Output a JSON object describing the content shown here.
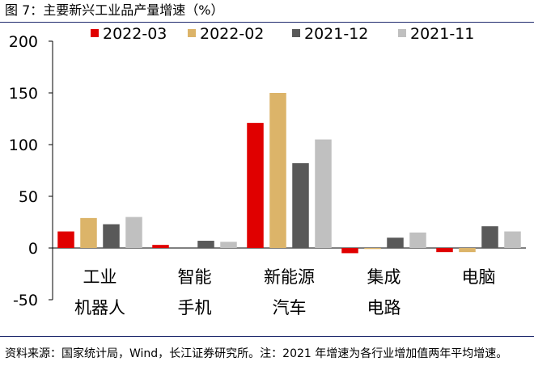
{
  "title": "图 7：主要新兴工业品产量增速（%）",
  "source": "资料来源：国家统计局，Wind，长江证券研究所。注：2021 年增速为各行业增加值两年平均增速。",
  "chart_data": {
    "type": "bar",
    "title": "主要新兴工业品产量增速（%）",
    "xlabel": "",
    "ylabel": "%",
    "ylim": [
      -50,
      200
    ],
    "yticks": [
      200,
      150,
      100,
      50,
      0,
      -50
    ],
    "grid": false,
    "legend": "top",
    "categories": [
      [
        "工业",
        "机器人"
      ],
      [
        "智能",
        "手机"
      ],
      [
        "新能源",
        "汽车"
      ],
      [
        "集成",
        "电路"
      ],
      [
        "电脑"
      ]
    ],
    "series": [
      {
        "name": "2022-03",
        "color": "#e00000",
        "values": [
          16,
          3,
          121,
          -5,
          -4
        ]
      },
      {
        "name": "2022-02",
        "color": "#dcb469",
        "values": [
          29,
          0,
          150,
          -1,
          -4
        ]
      },
      {
        "name": "2021-12",
        "color": "#595959",
        "values": [
          23,
          7,
          82,
          10,
          21
        ]
      },
      {
        "name": "2021-11",
        "color": "#c0c0c0",
        "values": [
          30,
          6,
          105,
          15,
          16
        ]
      }
    ]
  }
}
